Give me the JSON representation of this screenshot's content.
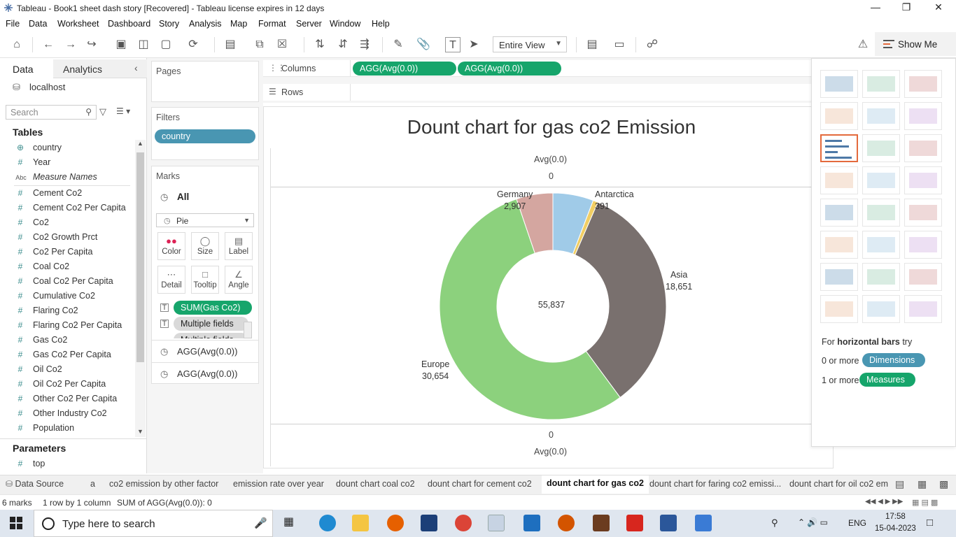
{
  "window": {
    "title": "Tableau - Book1 sheet dash story [Recovered] - Tableau license expires in 12 days"
  },
  "menu": [
    "File",
    "Data",
    "Worksheet",
    "Dashboard",
    "Story",
    "Analysis",
    "Map",
    "Format",
    "Server",
    "Window",
    "Help"
  ],
  "toolbar": {
    "fit_select": "Entire View",
    "show_me": "Show Me"
  },
  "data_pane": {
    "tab_data": "Data",
    "tab_analytics": "Analytics",
    "datasource": "localhost",
    "search_placeholder": "Search",
    "tables_header": "Tables",
    "fields": [
      {
        "icon": "globe",
        "name": "country"
      },
      {
        "icon": "#",
        "name": "Year"
      },
      {
        "icon": "Abc",
        "name": "Measure Names"
      },
      {
        "icon": "#",
        "name": "Cement Co2"
      },
      {
        "icon": "#",
        "name": "Cement Co2 Per Capita"
      },
      {
        "icon": "#",
        "name": "Co2"
      },
      {
        "icon": "#",
        "name": "Co2 Growth Prct"
      },
      {
        "icon": "#",
        "name": "Co2 Per Capita"
      },
      {
        "icon": "#",
        "name": "Coal Co2"
      },
      {
        "icon": "#",
        "name": "Coal Co2 Per Capita"
      },
      {
        "icon": "#",
        "name": "Cumulative Co2"
      },
      {
        "icon": "#",
        "name": "Flaring Co2"
      },
      {
        "icon": "#",
        "name": "Flaring Co2 Per Capita"
      },
      {
        "icon": "#",
        "name": "Gas Co2"
      },
      {
        "icon": "#",
        "name": "Gas Co2 Per Capita"
      },
      {
        "icon": "#",
        "name": "Oil Co2"
      },
      {
        "icon": "#",
        "name": "Oil Co2 Per Capita"
      },
      {
        "icon": "#",
        "name": "Other Co2 Per Capita"
      },
      {
        "icon": "#",
        "name": "Other Industry Co2"
      },
      {
        "icon": "#",
        "name": "Population"
      }
    ],
    "parameters_header": "Parameters",
    "parameters": [
      {
        "icon": "#",
        "name": "top"
      }
    ]
  },
  "shelves": {
    "pages": "Pages",
    "filters": "Filters",
    "filter_pill": "country",
    "marks": "Marks",
    "marks_all": "All",
    "mark_type": "Pie",
    "mark_buttons": [
      "Color",
      "Size",
      "Label",
      "Detail",
      "Tooltip",
      "Angle"
    ],
    "mark_fields": [
      "SUM(Gas Co2)",
      "Multiple fields",
      "Multiple fields"
    ],
    "agg_1": "AGG(Avg(0.0))",
    "agg_2": "AGG(Avg(0.0))",
    "columns": "Columns",
    "rows": "Rows",
    "column_pills": [
      "AGG(Avg(0.0))",
      "AGG(Avg(0.0))"
    ]
  },
  "viz": {
    "title": "Dount chart for gas co2 Emission",
    "axis_top_title": "Avg(0.0)",
    "axis_top_tick": "0",
    "axis_bottom_title": "Avg(0.0)",
    "axis_bottom_tick": "0",
    "total_label": "55,837"
  },
  "chart_data": {
    "type": "pie",
    "title": "Dount chart for gas co2 Emission",
    "categories": [
      "Antarctica",
      "Asia",
      "Europe",
      "Germany"
    ],
    "values": [
      391,
      18651,
      30654,
      2907
    ],
    "value_labels": [
      "391",
      "18,651",
      "30,654",
      "2,907"
    ],
    "center_label": "55,837",
    "colors": {
      "blue_unlabeled": "#a0cbe8",
      "Antarctica": "#f1ce63",
      "Asia": "#79706e",
      "Europe": "#8cd17d",
      "Germany": "#d4a6a0"
    },
    "unlabeled_segment_value": 3234
  },
  "show_me": {
    "hint_prefix": "For",
    "hint_bold": "horizontal bars",
    "hint_suffix": "try",
    "req1_prefix": "0 or more",
    "req1_pill": "Dimensions",
    "req2_prefix": "1 or more",
    "req2_pill": "Measures",
    "accent": "#e46a3c"
  },
  "sheet_tabs": {
    "data_source": "Data Source",
    "tabs": [
      "a",
      "co2 emission by other factor",
      "emission rate over year",
      "dount chart coal co2",
      "dount chart for cement co2",
      "dount chart for gas co2",
      "dount chart for faring co2 emissi...",
      "dount chart for oil co2 em"
    ],
    "active": "dount chart for gas co2"
  },
  "status": {
    "marks": "6 marks",
    "rows_cols": "1 row by 1 column",
    "sum": "SUM of AGG(Avg(0.0)): 0"
  },
  "taskbar": {
    "search_placeholder": "Type here to search",
    "lang": "ENG",
    "time": "17:58",
    "date": "15-04-2023"
  }
}
